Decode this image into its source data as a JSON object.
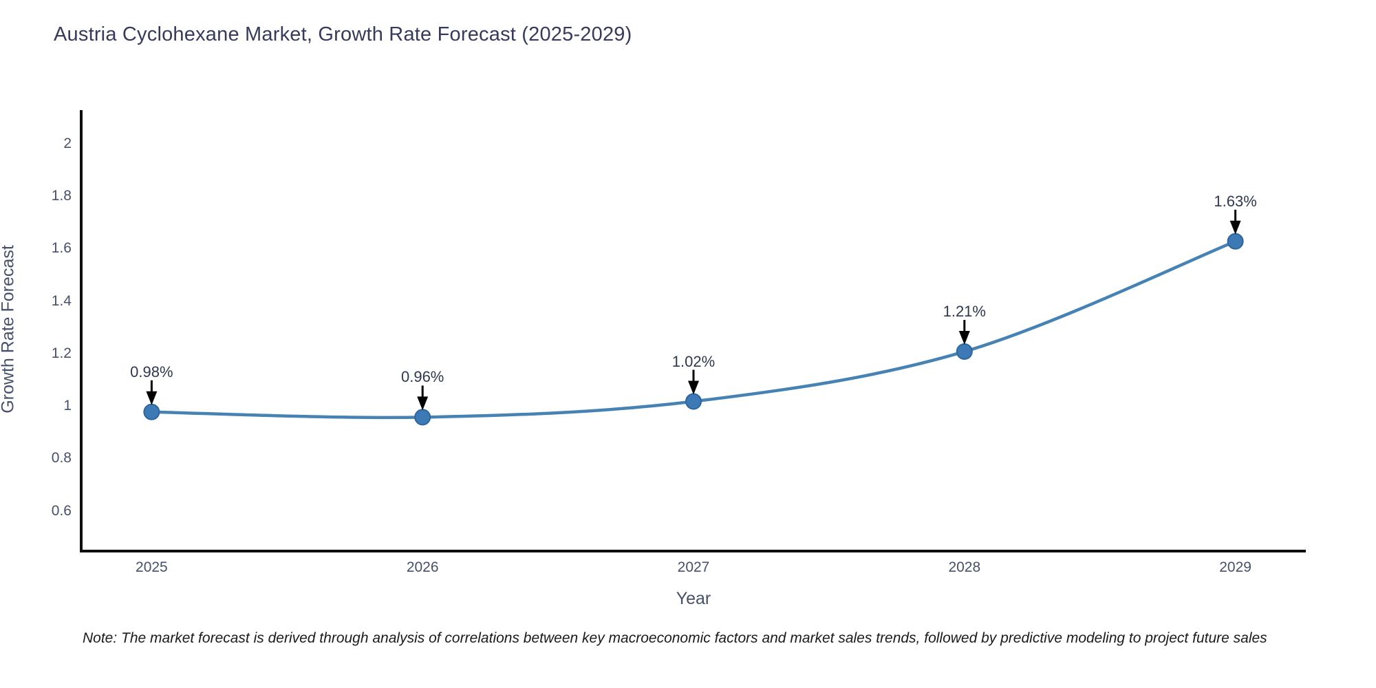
{
  "title": "Austria Cyclohexane Market, Growth Rate Forecast (2025-2029)",
  "note": "Note: The market forecast is derived through analysis of correlations between key macroeconomic factors and market sales trends, followed by predictive modeling to project future sales",
  "chart_data": {
    "type": "line",
    "title": "Austria Cyclohexane Market, Growth Rate Forecast (2025-2029)",
    "xlabel": "Year",
    "ylabel": "Growth Rate Forecast",
    "x": [
      2025,
      2026,
      2027,
      2028,
      2029
    ],
    "values": [
      0.98,
      0.96,
      1.02,
      1.21,
      1.63
    ],
    "point_labels": [
      "0.98%",
      "0.96%",
      "1.02%",
      "1.21%",
      "1.63%"
    ],
    "y_ticks": [
      2,
      1.8,
      1.6,
      1.4,
      1.2,
      1,
      0.8,
      0.6
    ],
    "x_ticks": [
      2025,
      2026,
      2027,
      2028,
      2029
    ],
    "ylim": [
      0.45,
      2.13
    ],
    "xlim": [
      2024.74,
      2029.26
    ],
    "grid": false,
    "legend_position": "none",
    "line_shape": "spline",
    "annotation_style": "value-above-with-down-arrow",
    "colors": {
      "background": "#ffffff",
      "line": "#4682b4",
      "marker": "#3d7ab5",
      "marker_edge": "#2d669e",
      "axis_line": "#0d0d0d",
      "title_text": "#363a5e",
      "tick_text": "#46506a",
      "annotation_text": "#2c3850",
      "arrow": "#000000"
    }
  }
}
